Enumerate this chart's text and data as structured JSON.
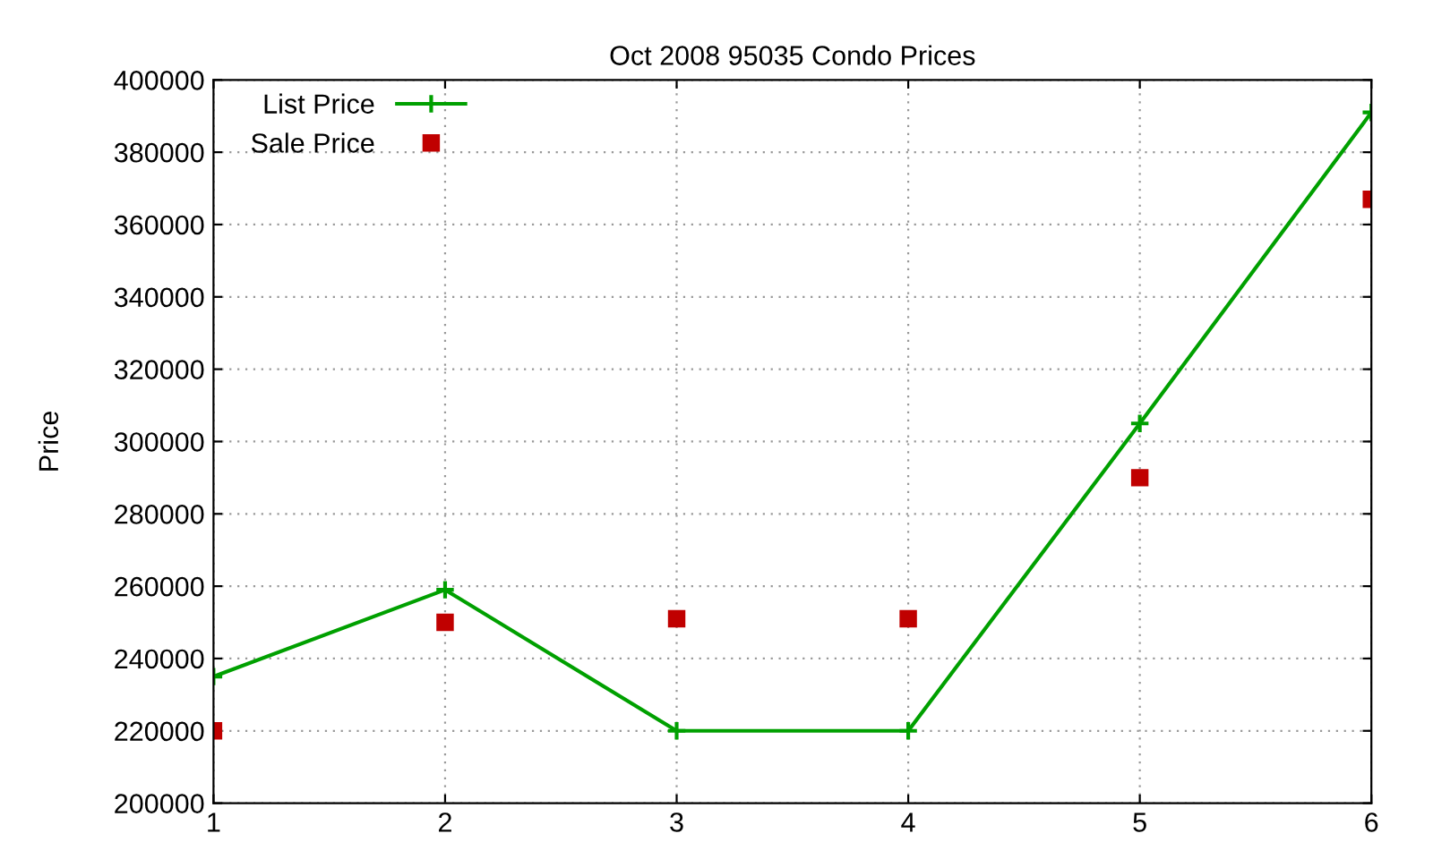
{
  "chart_data": {
    "type": "line",
    "title": "Oct 2008 95035 Condo Prices",
    "ylabel": "Price",
    "x": [
      1,
      2,
      3,
      4,
      5,
      6
    ],
    "series": [
      {
        "name": "List Price",
        "color": "#00a000",
        "marker": "cross",
        "values": [
          235000,
          259000,
          220000,
          220000,
          305000,
          391000
        ]
      },
      {
        "name": "Sale Price",
        "type": "scatter",
        "color": "#c00000",
        "marker": "square",
        "values": [
          220000,
          250000,
          251000,
          251000,
          290000,
          367000
        ]
      }
    ],
    "xlim": [
      1,
      6
    ],
    "xticks": [
      1,
      2,
      3,
      4,
      5,
      6
    ],
    "ylim": [
      200000,
      400000
    ],
    "yticks": [
      200000,
      220000,
      240000,
      260000,
      280000,
      300000,
      320000,
      340000,
      360000,
      380000,
      400000
    ],
    "grid": true,
    "legend": "top left"
  }
}
